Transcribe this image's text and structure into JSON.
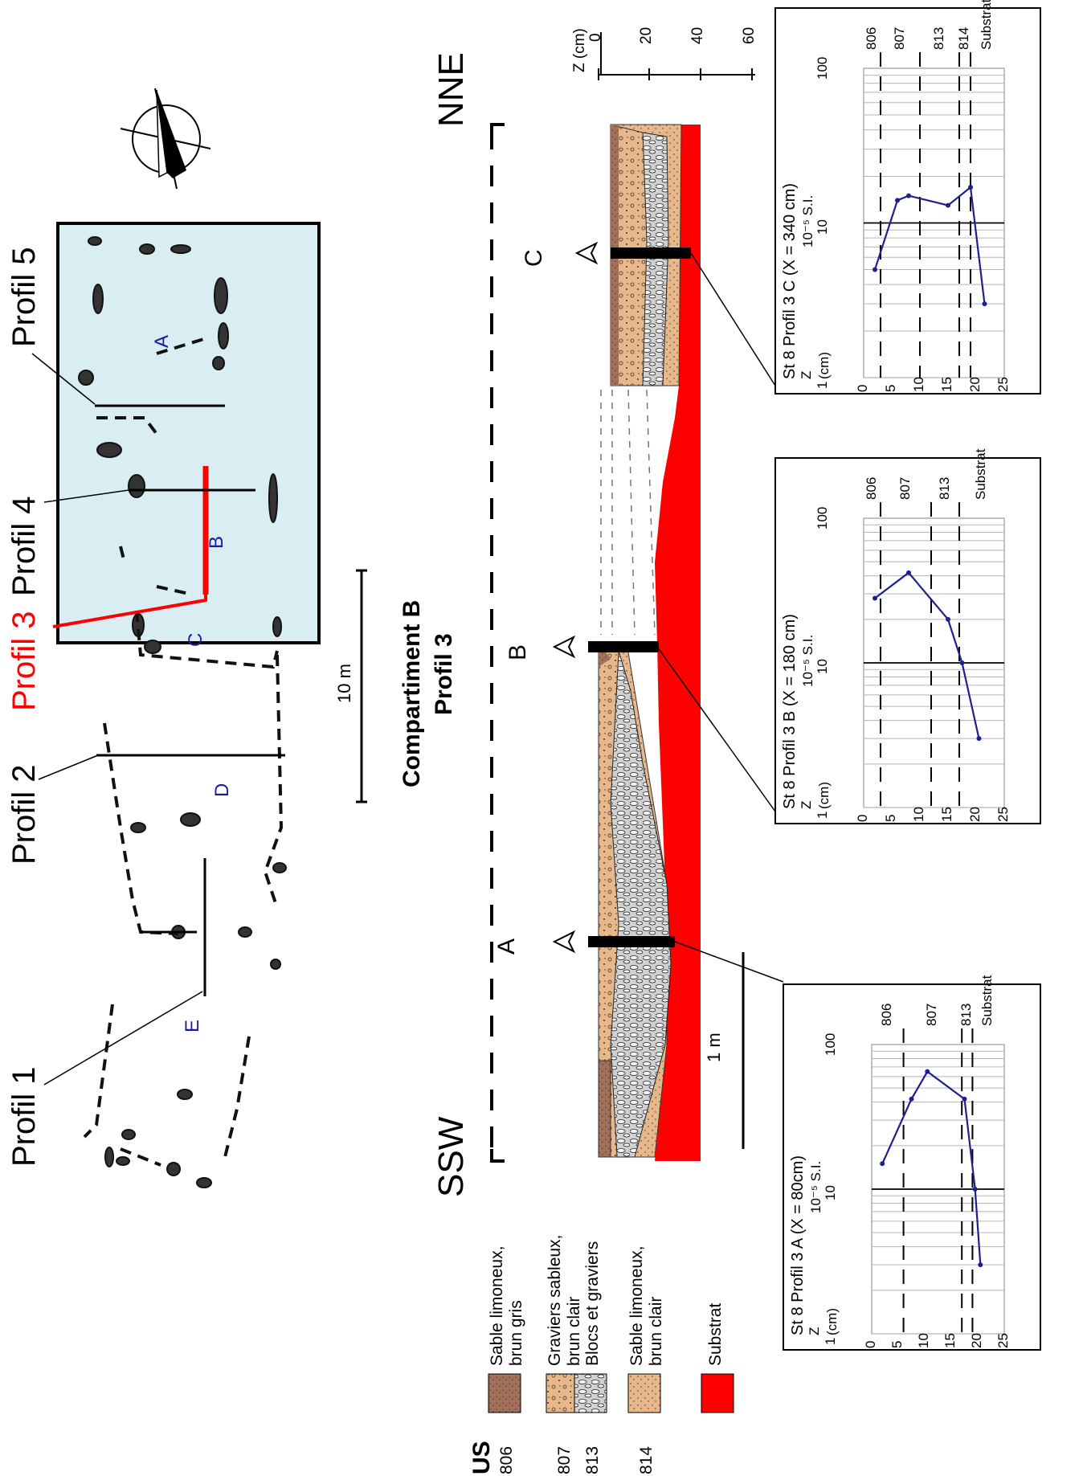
{
  "plan": {
    "profiles": [
      {
        "label": "Profil 1",
        "color": "#000000"
      },
      {
        "label": "Profil 2",
        "color": "#000000"
      },
      {
        "label": "Profil 3",
        "color": "#ff0000"
      },
      {
        "label": "Profil 4",
        "color": "#000000"
      },
      {
        "label": "Profil 5",
        "color": "#000000"
      }
    ],
    "compartments": [
      "E",
      "D",
      "C",
      "B",
      "A"
    ],
    "scale_label": "10 m",
    "highlight_fill": "#d9eef3"
  },
  "section": {
    "title_line1": "Compartiment B",
    "title_line2": "Profil 3",
    "left_end": "SSW",
    "right_end": "NNE",
    "points": [
      "A",
      "B",
      "C"
    ],
    "scale_label": "1 m",
    "z_axis_label": "Z (cm)",
    "z_ticks": [
      "0",
      "20",
      "40",
      "60"
    ]
  },
  "legend": {
    "header": "US",
    "items": [
      {
        "code": "806",
        "line1": "Sable limoneux,",
        "line2": "brun gris",
        "color": "#a0705a"
      },
      {
        "code": "807",
        "line1": "Graviers sableux,",
        "line2": "brun clair",
        "color": "#e8b88a"
      },
      {
        "code": "813",
        "line1": "Blocs et graviers",
        "line2": "",
        "color": "#c8c8c8"
      },
      {
        "code": "814",
        "line1": "Sable limoneux,",
        "line2": "brun clair",
        "color": "#e8b88a"
      },
      {
        "code": "",
        "line1": "Substrat",
        "line2": "",
        "color": "#ff0000"
      }
    ]
  },
  "chart_data": [
    {
      "type": "line",
      "title": "St 8 Profil 3 A (X = 80cm)",
      "unit_line": "10⁻⁵ S.I.",
      "x_label": "Z (cm)",
      "x_scale": "linear",
      "x_range": [
        0,
        25
      ],
      "x_ticks": [
        "0",
        "5",
        "10",
        "15",
        "20",
        "25"
      ],
      "y_scale": "log",
      "y_range": [
        1,
        100
      ],
      "y_ticks": [
        "1",
        "10",
        "100"
      ],
      "layers": [
        {
          "name": "806",
          "boundary_below": 6
        },
        {
          "name": "807",
          "boundary_below": 17
        },
        {
          "name": "813",
          "boundary_below": 19
        },
        {
          "name": "Substrat",
          "boundary_below": null
        }
      ],
      "x": [
        2,
        7.5,
        10.5,
        17.5,
        19.5,
        20.5
      ],
      "y": [
        15,
        42,
        65,
        42,
        10,
        3
      ]
    },
    {
      "type": "line",
      "title": "St 8 Profil 3 B (X = 180 cm)",
      "unit_line": "10⁻⁵ S.I.",
      "x_label": "Z (cm)",
      "x_scale": "linear",
      "x_range": [
        0,
        25
      ],
      "x_ticks": [
        "0",
        "5",
        "10",
        "15",
        "20",
        "25"
      ],
      "y_scale": "log",
      "y_range": [
        1,
        100
      ],
      "y_ticks": [
        "1",
        "10",
        "100"
      ],
      "layers": [
        {
          "name": "806",
          "boundary_below": 3
        },
        {
          "name": "807",
          "boundary_below": 12
        },
        {
          "name": "813",
          "boundary_below": 17
        },
        {
          "name": "Substrat",
          "boundary_below": null
        }
      ],
      "x": [
        2,
        8,
        15,
        17.5,
        20.5
      ],
      "y": [
        28,
        42,
        20,
        10,
        3
      ]
    },
    {
      "type": "line",
      "title": "St 8 Profil 3 C (X = 340 cm)",
      "unit_line": "10⁻⁵ S.I.",
      "x_label": "Z (cm)",
      "x_scale": "linear",
      "x_range": [
        0,
        25
      ],
      "x_ticks": [
        "0",
        "5",
        "10",
        "15",
        "20",
        "25"
      ],
      "y_scale": "log",
      "y_range": [
        1,
        100
      ],
      "y_ticks": [
        "1",
        "10",
        "100"
      ],
      "layers": [
        {
          "name": "806",
          "boundary_below": 3
        },
        {
          "name": "807",
          "boundary_below": 10
        },
        {
          "name": "813",
          "boundary_below": 17
        },
        {
          "name": "814",
          "boundary_below": 19
        },
        {
          "name": "Substrat",
          "boundary_below": null
        }
      ],
      "x": [
        2,
        6,
        8,
        15,
        19,
        21.5
      ],
      "y": [
        5,
        14,
        15,
        13,
        17,
        3
      ]
    }
  ]
}
